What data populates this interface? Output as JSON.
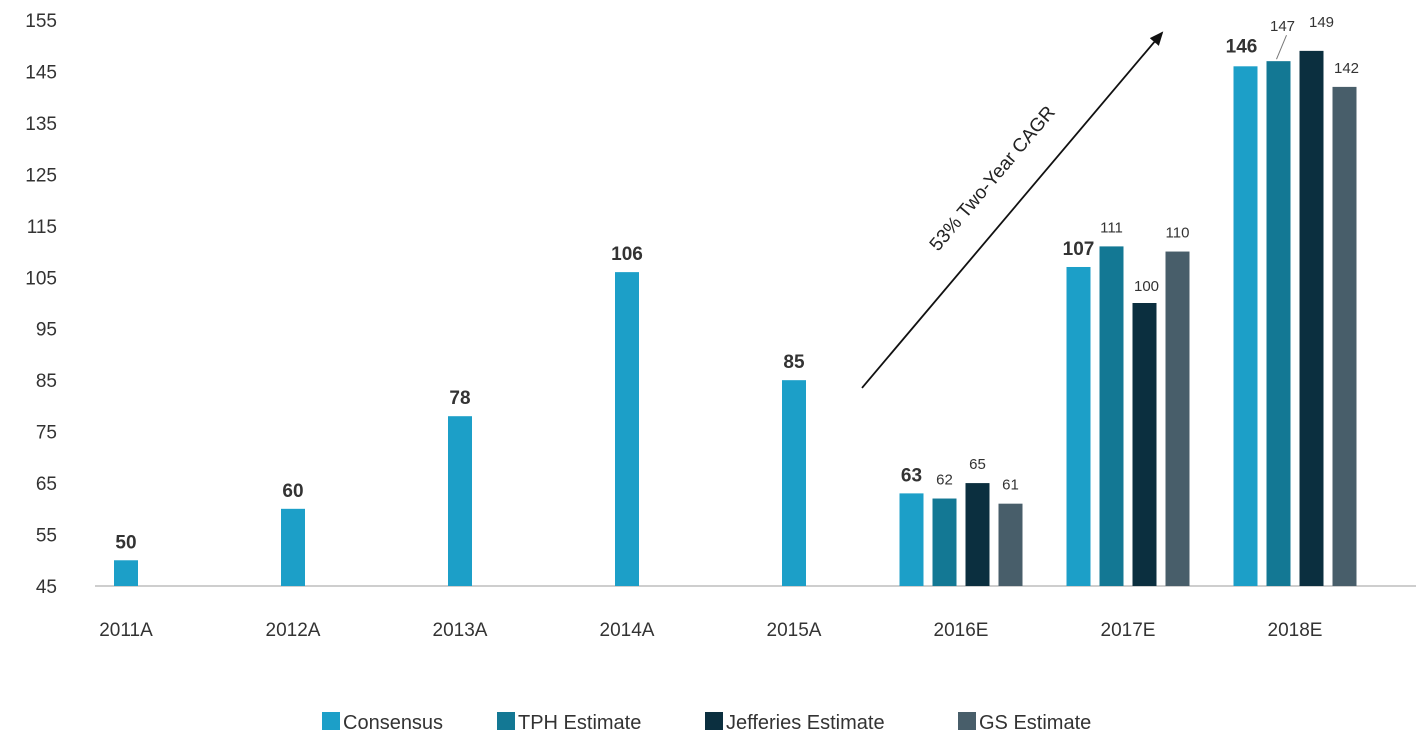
{
  "chart_data": {
    "type": "bar",
    "title": "",
    "xlabel": "",
    "ylabel": "",
    "ylim": [
      45,
      155
    ],
    "yticks": [
      45,
      55,
      65,
      75,
      85,
      95,
      105,
      115,
      125,
      135,
      145,
      155
    ],
    "grid": false,
    "legend_position": "bottom",
    "categories": [
      "2011A",
      "2012A",
      "2013A",
      "2014A",
      "2015A",
      "2016E",
      "2017E",
      "2018E"
    ],
    "series": [
      {
        "name": "Consensus",
        "color": "#1C9FC8",
        "values": [
          50,
          60,
          78,
          106,
          85,
          63,
          107,
          146
        ]
      },
      {
        "name": "TPH Estimate",
        "color": "#137894",
        "values": [
          null,
          null,
          null,
          null,
          null,
          62,
          111,
          147
        ]
      },
      {
        "name": "Jefferies Estimate",
        "color": "#0B2F3F",
        "values": [
          null,
          null,
          null,
          null,
          null,
          65,
          100,
          149
        ]
      },
      {
        "name": "GS Estimate",
        "color": "#485E6A",
        "values": [
          null,
          null,
          null,
          null,
          null,
          61,
          110,
          142
        ]
      }
    ],
    "annotations": [
      {
        "text": "53% Two-Year CAGR",
        "type": "arrow",
        "from_category": "2016E",
        "to_category": "2018E"
      }
    ]
  }
}
